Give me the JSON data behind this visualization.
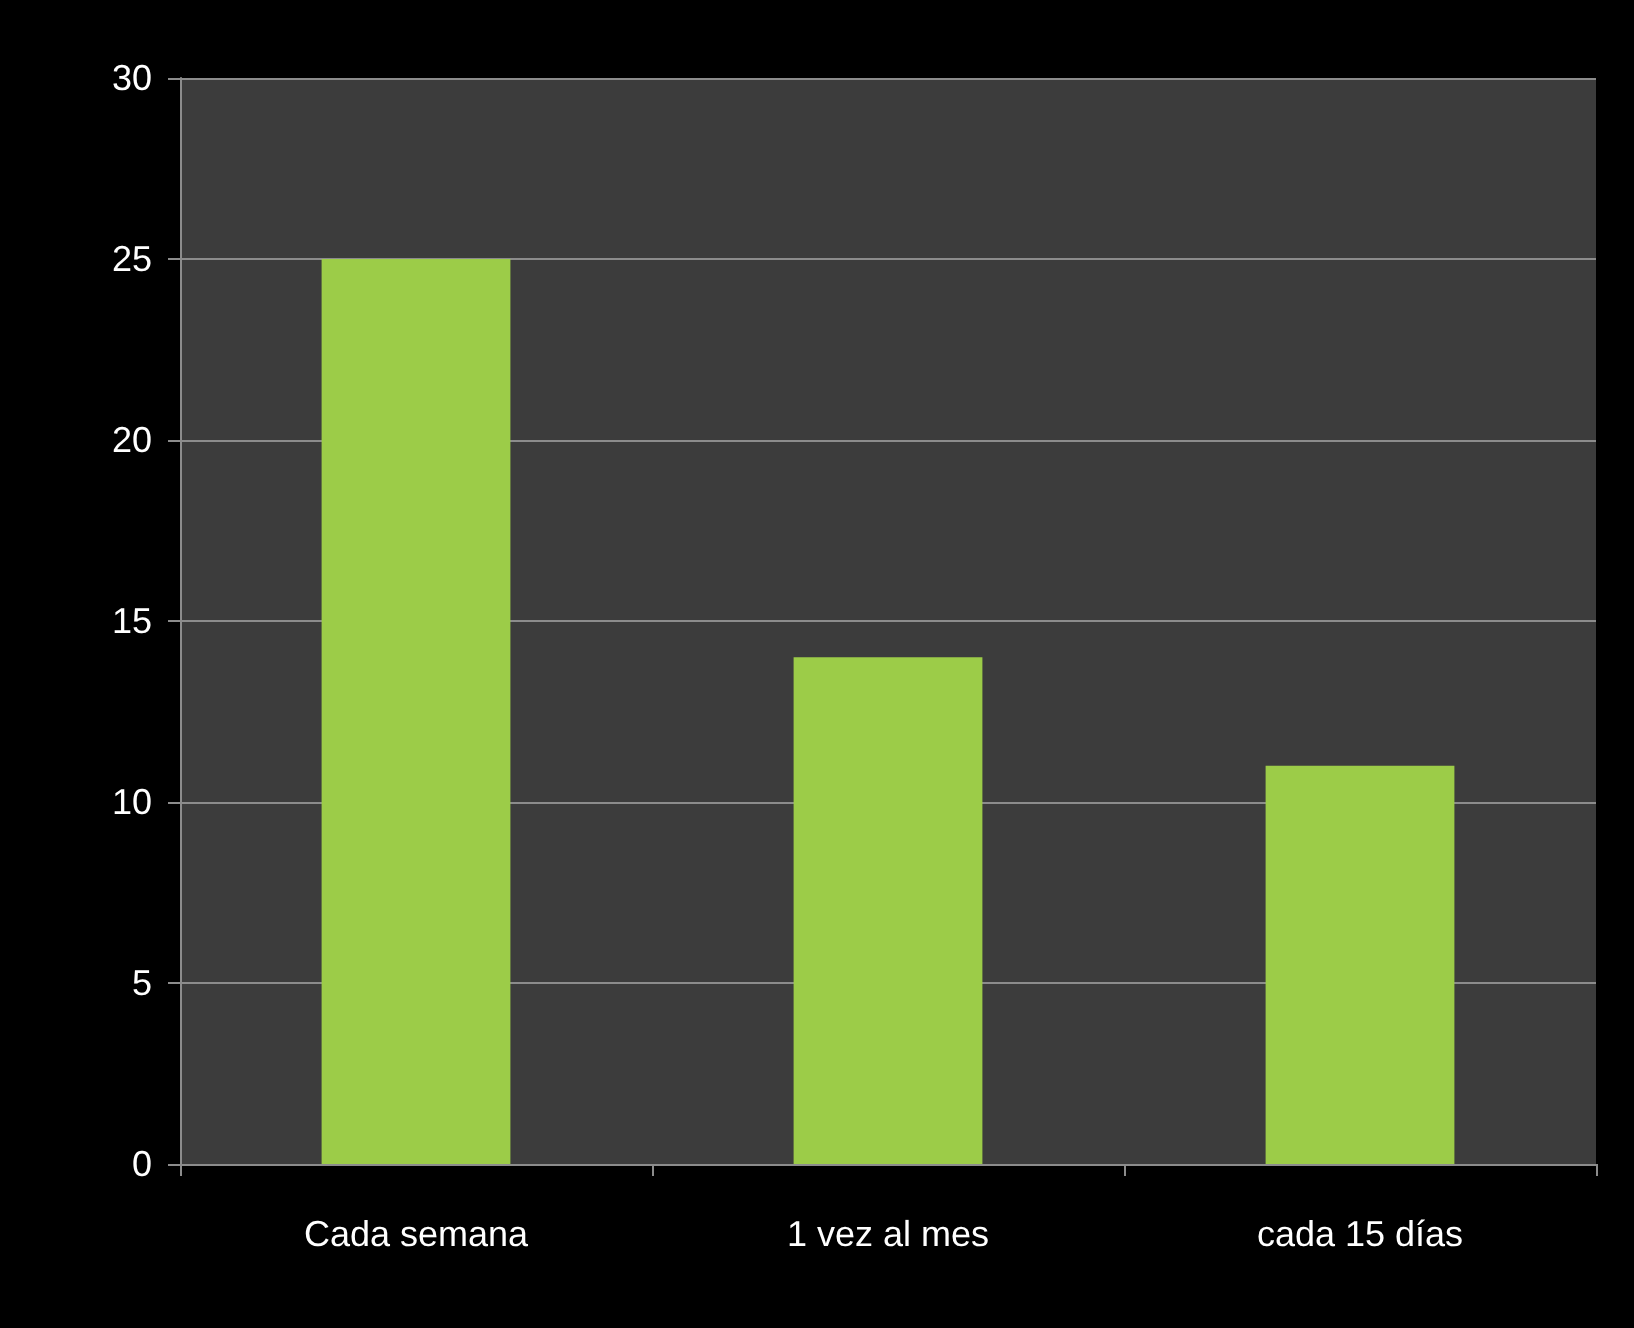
{
  "chart_data": {
    "type": "bar",
    "categories": [
      "Cada semana",
      "1 vez al mes",
      "cada 15 días"
    ],
    "values": [
      25,
      14,
      11
    ],
    "color": "#9ccc48",
    "ylim": [
      0,
      30
    ],
    "yticks": [
      0,
      5,
      10,
      15,
      20,
      25,
      30
    ],
    "grid": "y"
  }
}
